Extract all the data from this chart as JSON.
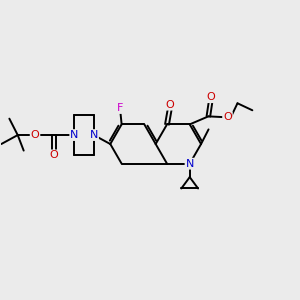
{
  "background_color": "#ebebeb",
  "bond_color": "#000000",
  "bond_width": 1.4,
  "atom_colors": {
    "C": "#000000",
    "N": "#0000cc",
    "O": "#cc0000",
    "F": "#cc00cc"
  },
  "font_size": 7.5,
  "fig_size": [
    3.0,
    3.0
  ],
  "dpi": 100
}
